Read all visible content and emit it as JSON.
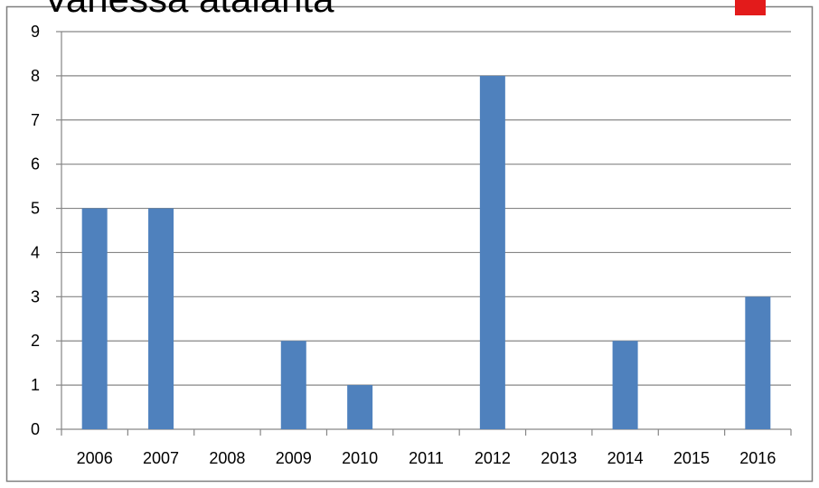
{
  "chart_data": {
    "type": "bar",
    "title": "Vanessa atalanta",
    "categories": [
      "2006",
      "2007",
      "2008",
      "2009",
      "2010",
      "2011",
      "2012",
      "2013",
      "2014",
      "2015",
      "2016"
    ],
    "series": [
      {
        "values": [
          5,
          5,
          0,
          2,
          1,
          0,
          8,
          0,
          2,
          0,
          3
        ]
      }
    ],
    "xlabel": "",
    "ylabel": "",
    "ylim": [
      0,
      9
    ],
    "yticks": [
      "0",
      "1",
      "2",
      "3",
      "4",
      "5",
      "6",
      "7",
      "8",
      "9"
    ],
    "grid": true,
    "legend": "none",
    "colors": {
      "bar": "#4f81bd",
      "grid": "#868686",
      "border": "#7f7f7f",
      "marker": "#e31b1b"
    }
  }
}
